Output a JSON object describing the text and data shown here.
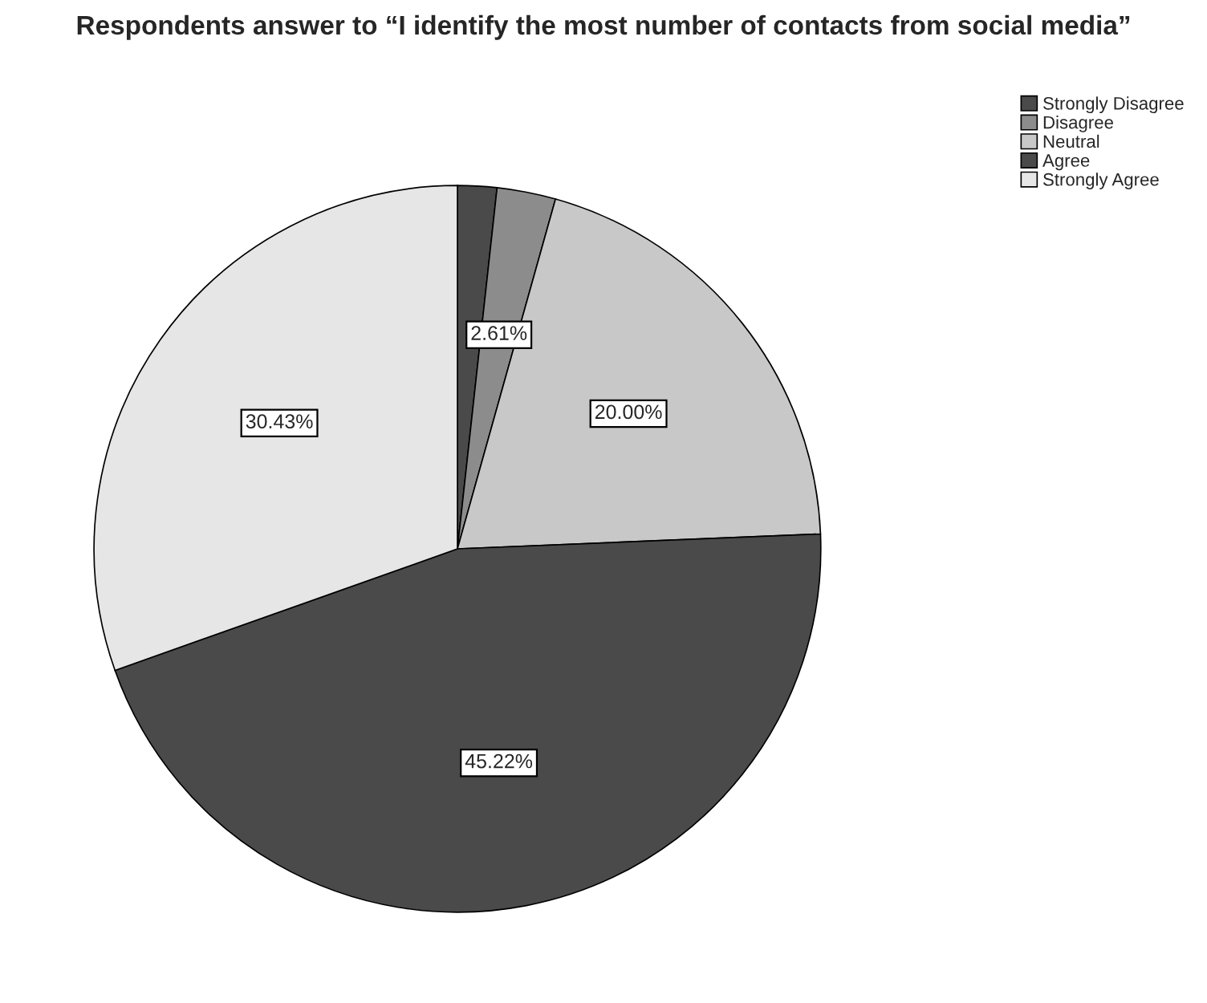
{
  "chart_data": {
    "type": "pie",
    "title": "Respondents answer to “I identify the most number of contacts from social media”",
    "categories": [
      "Strongly Disagree",
      "Disagree",
      "Neutral",
      "Agree",
      "Strongly Agree"
    ],
    "values": [
      1.74,
      2.61,
      20.0,
      45.22,
      30.43
    ],
    "value_labels": [
      null,
      "2.61%",
      "20.00%",
      "45.22%",
      "30.43%"
    ],
    "colors": [
      "#4a4a4a",
      "#8c8c8c",
      "#c8c8c8",
      "#4a4a4a",
      "#e6e6e6"
    ],
    "legend": "top right"
  }
}
